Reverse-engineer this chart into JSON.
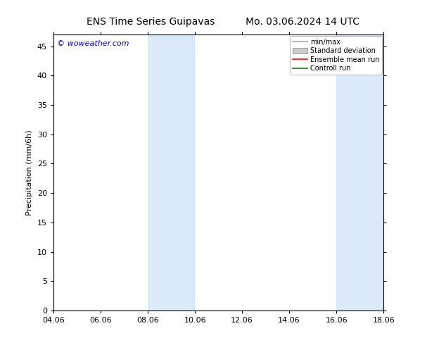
{
  "title_left": "ENS Time Series Guipavas",
  "title_right": "Mo. 03.06.2024 14 UTC",
  "ylabel": "Precipitation (mm/6h)",
  "watermark": "© woweather.com",
  "watermark_color": "#0000dd",
  "x_tick_labels": [
    "04.06",
    "06.06",
    "08.06",
    "10.06",
    "12.06",
    "14.06",
    "16.06",
    "18.06"
  ],
  "x_tick_values": [
    0,
    2,
    4,
    6,
    8,
    10,
    12,
    14
  ],
  "xlim": [
    0,
    14
  ],
  "ylim": [
    0,
    47
  ],
  "y_ticks": [
    0,
    5,
    10,
    15,
    20,
    25,
    30,
    35,
    40,
    45
  ],
  "shaded_regions": [
    {
      "x_start": 4.0,
      "x_end": 5.0,
      "color": "#daeaf8"
    },
    {
      "x_start": 5.0,
      "x_end": 6.0,
      "color": "#daeaf8"
    },
    {
      "x_start": 12.0,
      "x_end": 13.0,
      "color": "#daeaf8"
    },
    {
      "x_start": 13.0,
      "x_end": 14.0,
      "color": "#daeaf8"
    }
  ],
  "legend_entries": [
    {
      "label": "min/max",
      "color": "#aaaaaa",
      "lw": 1.2
    },
    {
      "label": "Standard deviation",
      "color": "#cccccc",
      "lw": 5
    },
    {
      "label": "Ensemble mean run",
      "color": "#ff0000",
      "lw": 1.2
    },
    {
      "label": "Controll run",
      "color": "#008000",
      "lw": 1.2
    }
  ],
  "bg_color": "#ffffff",
  "plot_bg_color": "#ffffff",
  "spine_color": "#000000",
  "title_fontsize": 10,
  "label_fontsize": 8,
  "tick_fontsize": 8,
  "watermark_fontsize": 8
}
